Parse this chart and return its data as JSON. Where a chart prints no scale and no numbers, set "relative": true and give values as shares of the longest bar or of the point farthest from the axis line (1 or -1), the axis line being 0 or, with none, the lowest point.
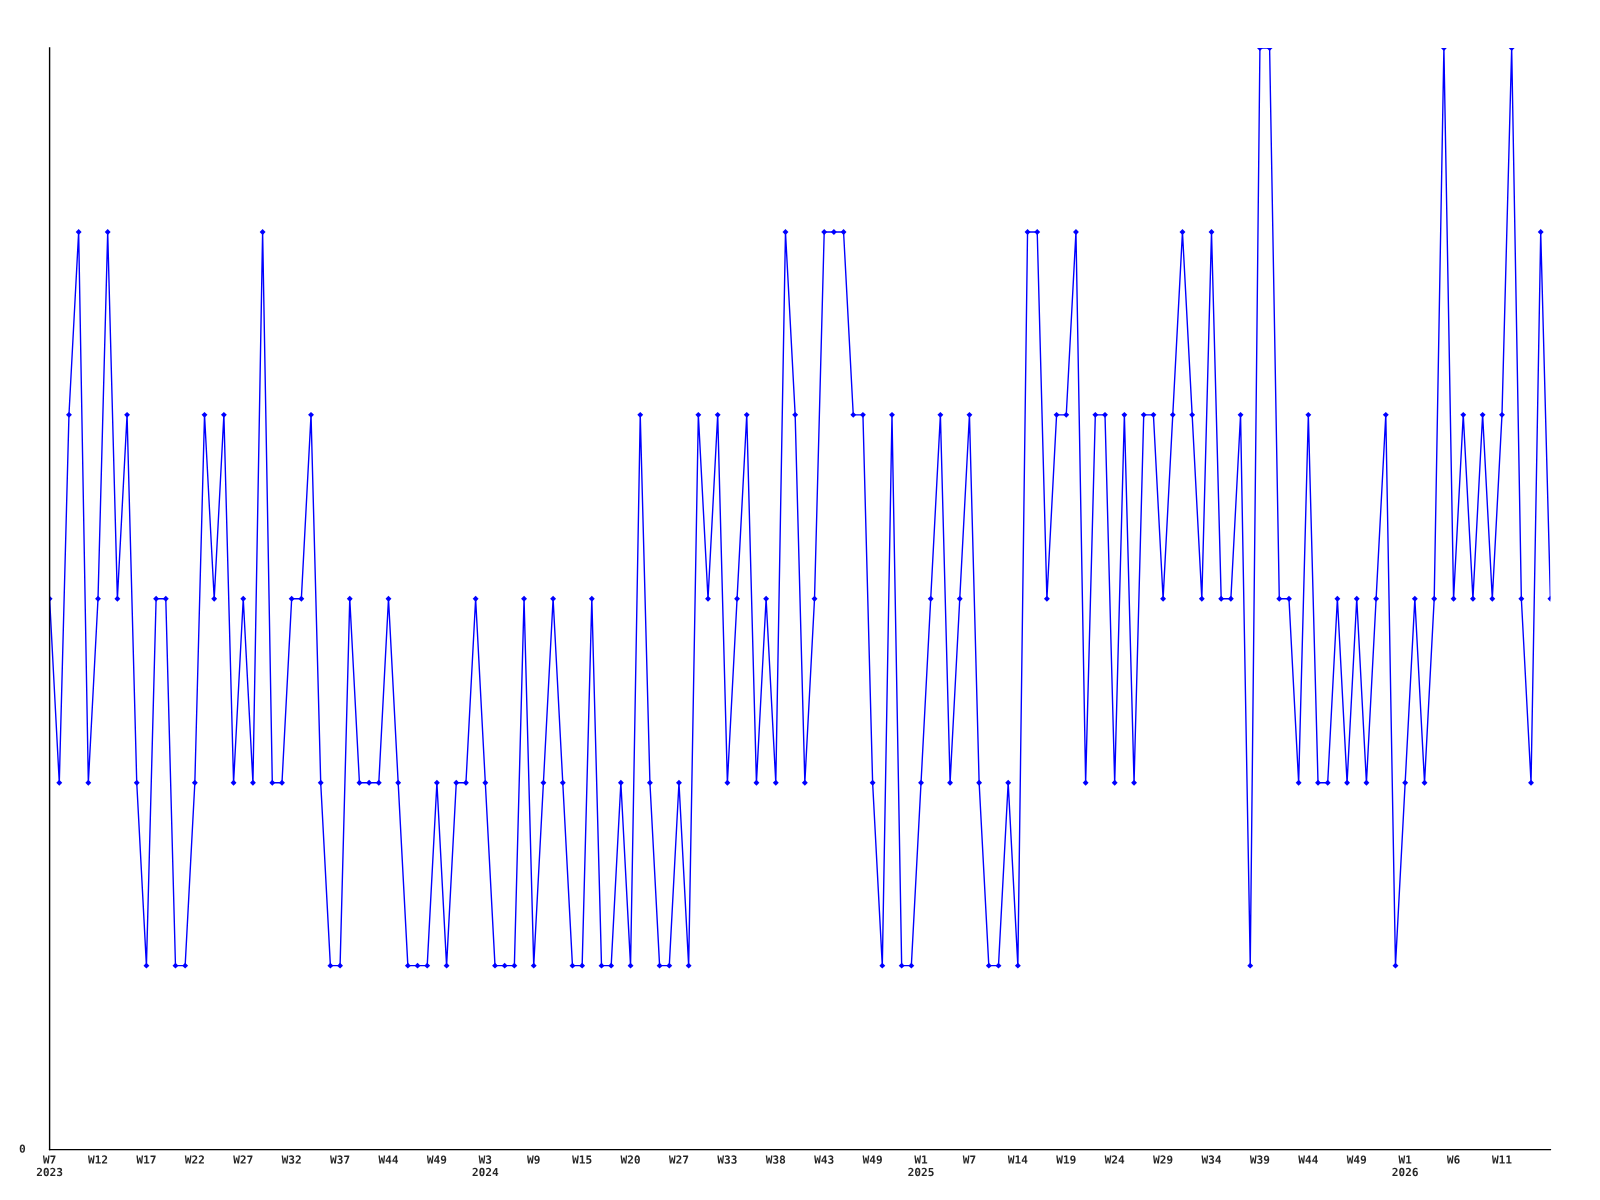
{
  "chart_data": {
    "type": "line",
    "relative": true,
    "marker": "diamond",
    "categories": [
      "W7\n2023",
      null,
      null,
      null,
      null,
      "W12",
      null,
      null,
      null,
      null,
      "W17",
      null,
      null,
      null,
      null,
      "W22",
      null,
      null,
      null,
      null,
      "W27",
      null,
      null,
      null,
      null,
      "W32",
      null,
      null,
      null,
      null,
      "W37",
      null,
      null,
      null,
      null,
      "W44",
      null,
      null,
      null,
      null,
      "W49",
      null,
      null,
      null,
      null,
      "W3\n2024",
      null,
      null,
      null,
      null,
      "W9",
      null,
      null,
      null,
      null,
      "W15",
      null,
      null,
      null,
      null,
      "W20",
      null,
      null,
      null,
      null,
      "W27",
      null,
      null,
      null,
      null,
      "W33",
      null,
      null,
      null,
      null,
      "W38",
      null,
      null,
      null,
      null,
      "W43",
      null,
      null,
      null,
      null,
      "W49",
      null,
      null,
      null,
      null,
      "W1\n2025",
      null,
      null,
      null,
      null,
      "W7",
      null,
      null,
      null,
      null,
      "W14",
      null,
      null,
      null,
      null,
      "W19",
      null,
      null,
      null,
      null,
      "W24",
      null,
      null,
      null,
      null,
      "W29",
      null,
      null,
      null,
      null,
      "W34",
      null,
      null,
      null,
      null,
      "W39",
      null,
      null,
      null,
      null,
      "W44",
      null,
      null,
      null,
      null,
      "W49",
      null,
      null,
      null,
      null,
      "W1\n2026",
      null,
      null,
      null,
      null,
      "W6",
      null,
      null,
      null,
      null,
      "W11",
      null,
      null,
      null,
      null,
      null
    ],
    "series": [
      {
        "color": "#0000ff",
        "values": [
          0.5,
          0.333,
          0.667,
          0.833,
          0.333,
          0.5,
          0.833,
          0.5,
          0.667,
          0.333,
          0.167,
          0.5,
          0.5,
          0.167,
          0.167,
          0.333,
          0.667,
          0.5,
          0.667,
          0.333,
          0.5,
          0.333,
          0.833,
          0.333,
          0.333,
          0.5,
          0.5,
          0.667,
          0.333,
          0.167,
          0.167,
          0.5,
          0.333,
          0.333,
          0.333,
          0.5,
          0.333,
          0.167,
          0.167,
          0.167,
          0.333,
          0.167,
          0.333,
          0.333,
          0.5,
          0.333,
          0.167,
          0.167,
          0.167,
          0.5,
          0.167,
          0.333,
          0.5,
          0.333,
          0.167,
          0.167,
          0.5,
          0.167,
          0.167,
          0.333,
          0.167,
          0.667,
          0.333,
          0.167,
          0.167,
          0.333,
          0.167,
          0.667,
          0.5,
          0.667,
          0.333,
          0.5,
          0.667,
          0.333,
          0.5,
          0.333,
          0.833,
          0.667,
          0.333,
          0.5,
          0.833,
          0.833,
          0.833,
          0.667,
          0.667,
          0.333,
          0.167,
          0.667,
          0.167,
          0.167,
          0.333,
          0.5,
          0.667,
          0.333,
          0.5,
          0.667,
          0.333,
          0.167,
          0.167,
          0.333,
          0.167,
          0.833,
          0.833,
          0.5,
          0.667,
          0.667,
          0.833,
          0.333,
          0.667,
          0.667,
          0.333,
          0.667,
          0.333,
          0.667,
          0.667,
          0.5,
          0.667,
          0.833,
          0.667,
          0.5,
          0.833,
          0.5,
          0.5,
          0.667,
          0.167,
          1,
          1,
          0.5,
          0.5,
          0.333,
          0.667,
          0.333,
          0.333,
          0.5,
          0.333,
          0.5,
          0.333,
          0.5,
          0.667,
          0.167,
          0.333,
          0.5,
          0.333,
          0.5,
          1,
          0.5,
          0.667,
          0.5,
          0.667,
          0.5,
          0.667,
          1,
          0.5,
          0.333,
          0.833,
          0.5
        ]
      }
    ],
    "annotations": [
      "0"
    ]
  }
}
